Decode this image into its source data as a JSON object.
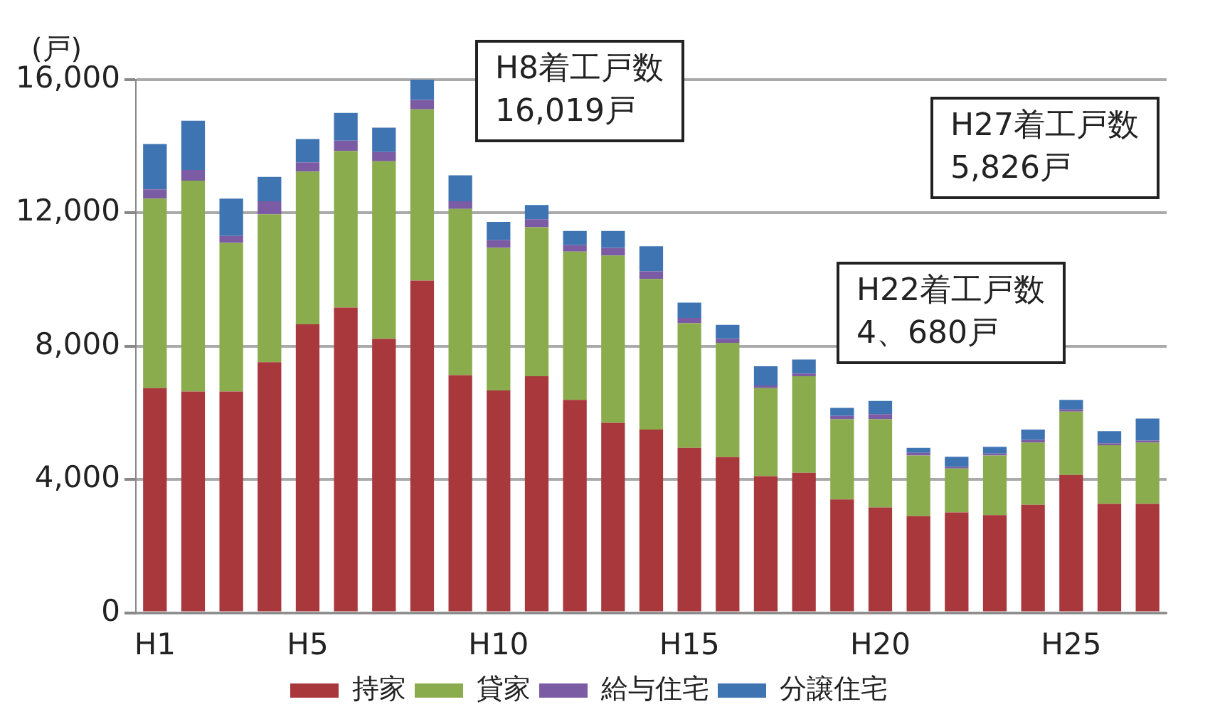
{
  "chart_data": {
    "type": "bar",
    "stacked": true,
    "ylabel": "(戸)",
    "categories": [
      "H1",
      null,
      null,
      null,
      "H5",
      null,
      null,
      null,
      null,
      "H10",
      null,
      null,
      null,
      null,
      "H15",
      null,
      null,
      null,
      null,
      "H20",
      null,
      null,
      null,
      null,
      "H25",
      null,
      null
    ],
    "series": [
      {
        "name": "持家",
        "color": "#a8383c",
        "values": [
          6740,
          6640,
          6640,
          7520,
          8660,
          9160,
          8220,
          9970,
          7130,
          6670,
          7100,
          6390,
          5700,
          5500,
          4950,
          4670,
          4100,
          4200,
          3400,
          3160,
          2900,
          3010,
          2930,
          3240,
          4140,
          3270,
          3270
        ]
      },
      {
        "name": "貸家",
        "color": "#8aac4c",
        "values": [
          5690,
          6330,
          4460,
          4440,
          4580,
          4700,
          5330,
          5140,
          4990,
          4280,
          4470,
          4450,
          5020,
          4520,
          3740,
          3430,
          2640,
          2900,
          2410,
          2650,
          1820,
          1320,
          1790,
          1870,
          1900,
          1760,
          1840
        ]
      },
      {
        "name": "給与住宅",
        "color": "#7b5ba3",
        "values": [
          280,
          320,
          210,
          390,
          280,
          310,
          280,
          280,
          230,
          230,
          240,
          190,
          230,
          230,
          160,
          120,
          80,
          80,
          100,
          150,
          80,
          50,
          60,
          80,
          60,
          60,
          60
        ]
      },
      {
        "name": "分譲住宅",
        "color": "#3f74b2",
        "values": [
          1360,
          1480,
          1120,
          730,
          700,
          830,
          730,
          630,
          780,
          550,
          430,
          430,
          510,
          750,
          460,
          420,
          580,
          420,
          240,
          400,
          150,
          300,
          200,
          310,
          290,
          360,
          660
        ]
      }
    ],
    "ylim": [
      0,
      16000
    ],
    "yticks": [
      0,
      {
        "value": 4000,
        "label": "4,000"
      },
      {
        "value": 8000,
        "label": "8,000"
      },
      {
        "value": 12000,
        "label": "12,000"
      },
      {
        "value": 16000,
        "label": "16,000"
      }
    ],
    "grid": "y",
    "legend": "bottom",
    "annotations": [
      "H8着工戸数\n16,019戸",
      "H27着工戸数\n5,826戸",
      "H22着工戸数\n4、680戸"
    ]
  }
}
